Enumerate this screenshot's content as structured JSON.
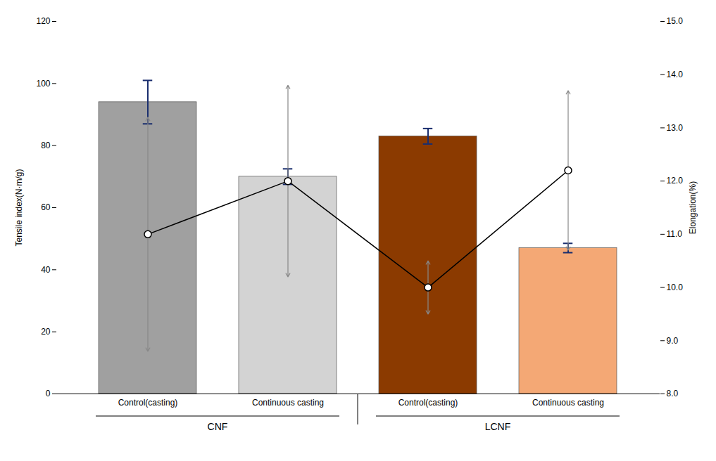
{
  "chart_data": {
    "type": "bar",
    "categories": [
      "Control(casting)",
      "Continuous casting",
      "Control(casting)",
      "Continuous casting"
    ],
    "groups": [
      "CNF",
      "CNF",
      "LCNF",
      "LCNF"
    ],
    "ylabel": "Tensile index(N·m/g)",
    "y2label": "Elongation(%)",
    "ylim": [
      0,
      120
    ],
    "yticks": [
      0,
      20,
      40,
      60,
      80,
      100,
      120
    ],
    "y2lim": [
      8,
      15
    ],
    "y2ticks": [
      8,
      9,
      10,
      11,
      12,
      13,
      14,
      15
    ],
    "series": [
      {
        "type": "bar",
        "values": [
          94.0,
          70.0,
          83.0,
          47.0
        ],
        "errors": [
          7.0,
          2.5,
          2.5,
          1.5
        ],
        "error_color": "#1a2e6e",
        "colors": [
          "#a0a0a0",
          "#d3d3d3",
          "#8B3A00",
          "#F4A875"
        ]
      },
      {
        "type": "line",
        "axis": "y2",
        "values": [
          11.0,
          12.0,
          10.0,
          12.2
        ],
        "color": "#000000",
        "marker": "circle",
        "arrows_up": [
          2.2,
          1.8,
          0.5,
          1.5
        ],
        "arrows_down": [
          2.2,
          1.8,
          0.5,
          1.5
        ],
        "arrow_color": "#888888"
      }
    ]
  }
}
